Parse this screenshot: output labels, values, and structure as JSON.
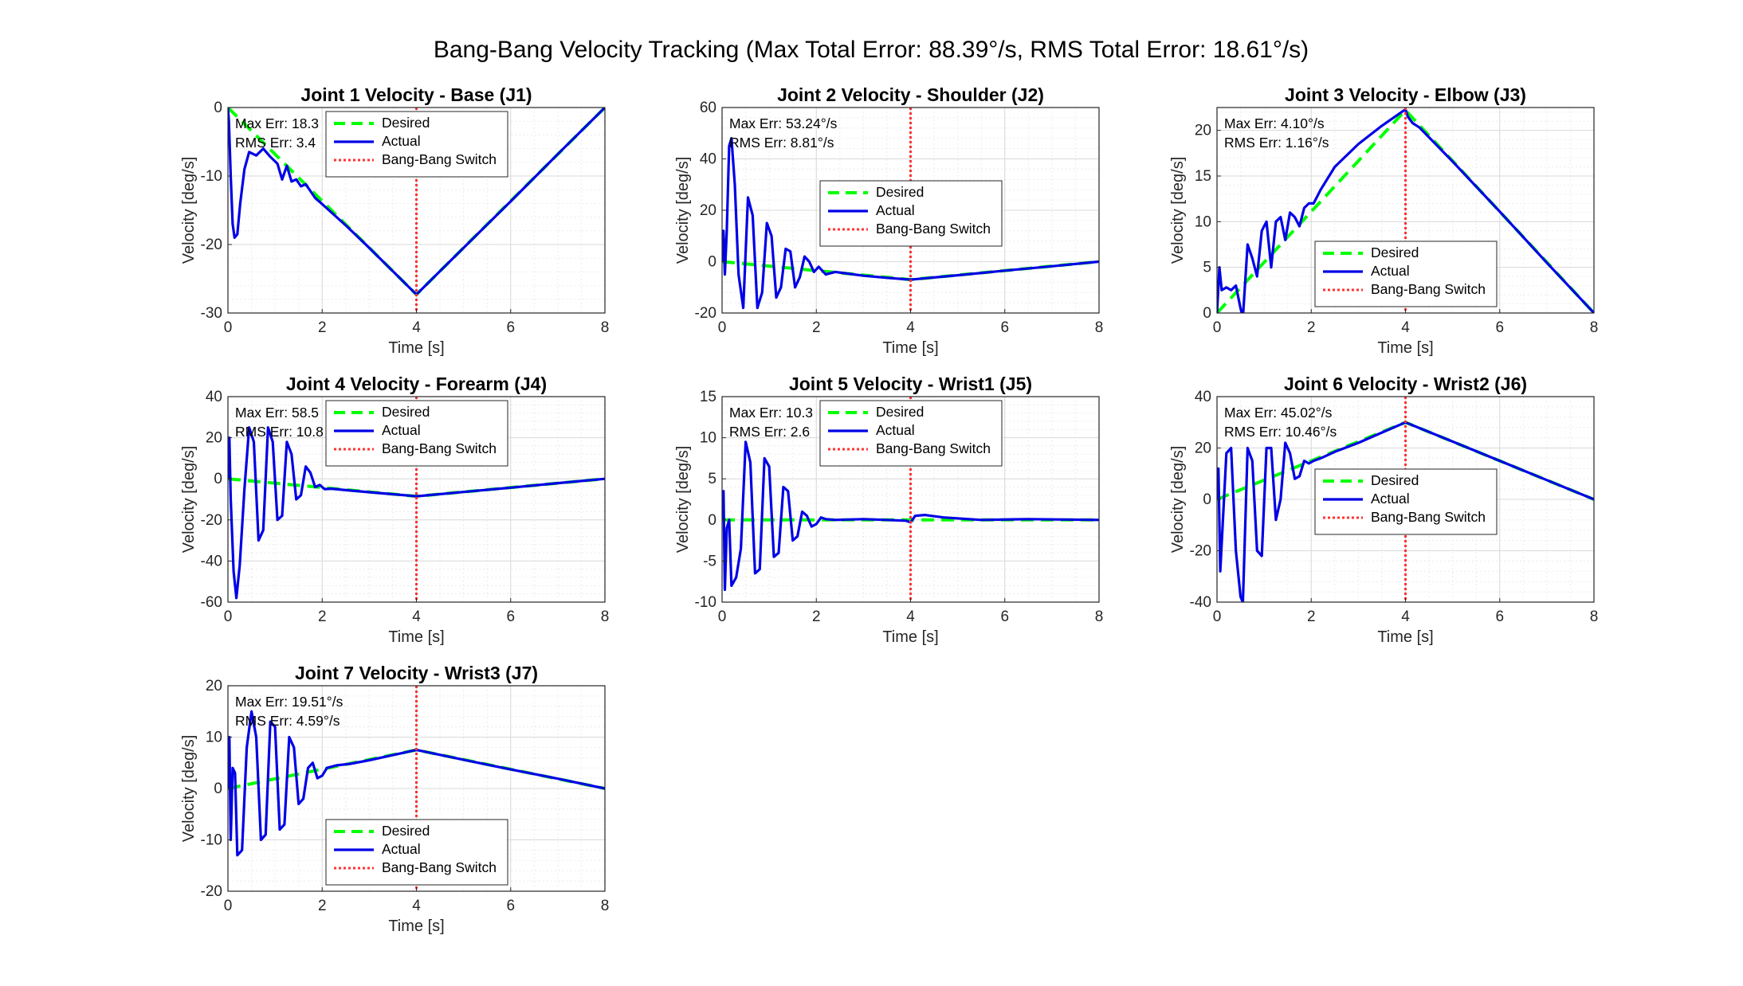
{
  "figure": {
    "suptitle": "Bang-Bang Velocity Tracking (Max Total Error: 88.39°/s, RMS Total Error: 18.61°/s)"
  },
  "colors": {
    "desired": "#00ff00",
    "actual": "#0000e6",
    "switch": "#ff3333"
  },
  "legend_labels": [
    "Desired",
    "Actual",
    "Bang-Bang Switch"
  ],
  "chart_data": [
    {
      "type": "line",
      "title": "Joint 1 Velocity - Base (J1)",
      "xlabel": "Time [s]",
      "ylabel": "Velocity [deg/s]",
      "xlim": [
        0,
        8
      ],
      "ylim": [
        -30,
        0
      ],
      "xticks": [
        0,
        2,
        4,
        6,
        8
      ],
      "yticks": [
        -30,
        -20,
        -10,
        0
      ],
      "grid": true,
      "switch_time": 4,
      "legend_location": "top-center",
      "annotations": [
        "Max Err: 18.3",
        "RMS Err: 3.4"
      ],
      "series": [
        {
          "name": "Desired",
          "style": "dashed",
          "x": [
            0,
            4,
            8
          ],
          "y": [
            0,
            -27.3,
            0
          ]
        },
        {
          "name": "Actual",
          "style": "solid",
          "x": [
            0,
            0.02,
            0.06,
            0.1,
            0.14,
            0.2,
            0.26,
            0.35,
            0.45,
            0.6,
            0.75,
            0.9,
            1.05,
            1.15,
            1.25,
            1.35,
            1.45,
            1.55,
            1.65,
            1.75,
            1.85,
            2.0,
            2.5,
            3.0,
            3.5,
            4.0,
            5.0,
            6.0,
            7.0,
            8.0
          ],
          "y": [
            0,
            -2,
            -10,
            -17,
            -19,
            -18.5,
            -14,
            -9,
            -6.5,
            -7,
            -6,
            -7.2,
            -8.2,
            -10.5,
            -8.5,
            -10.8,
            -10.5,
            -11.5,
            -11.2,
            -12.2,
            -13.2,
            -14.1,
            -17.2,
            -20.5,
            -23.9,
            -27.3,
            -20.5,
            -13.7,
            -6.8,
            0
          ]
        }
      ]
    },
    {
      "type": "line",
      "title": "Joint 2 Velocity - Shoulder (J2)",
      "xlabel": "Time [s]",
      "ylabel": "Velocity [deg/s]",
      "xlim": [
        0,
        8
      ],
      "ylim": [
        -20,
        60
      ],
      "xticks": [
        0,
        2,
        4,
        6,
        8
      ],
      "yticks": [
        -20,
        0,
        20,
        40,
        60
      ],
      "grid": true,
      "switch_time": 4,
      "legend_location": "center",
      "annotations": [
        "Max Err: 53.24°/s",
        "RMS Err: 8.81°/s"
      ],
      "series": [
        {
          "name": "Desired",
          "style": "dashed",
          "x": [
            0,
            4,
            8
          ],
          "y": [
            0,
            -7,
            0
          ]
        },
        {
          "name": "Actual",
          "style": "solid",
          "x": [
            0,
            0.03,
            0.06,
            0.1,
            0.15,
            0.2,
            0.27,
            0.35,
            0.45,
            0.55,
            0.65,
            0.75,
            0.85,
            0.95,
            1.05,
            1.15,
            1.25,
            1.35,
            1.45,
            1.55,
            1.65,
            1.75,
            1.85,
            1.95,
            2.05,
            2.2,
            2.4,
            2.6,
            3.0,
            3.5,
            4.0,
            5.0,
            6.0,
            7.0,
            8.0
          ],
          "y": [
            0,
            12,
            -5,
            12,
            45,
            48,
            30,
            -5,
            -18,
            25,
            18,
            -18,
            -12,
            15,
            10,
            -14,
            -10,
            5,
            4,
            -10,
            -6,
            2,
            0,
            -4,
            -2,
            -5,
            -4,
            -4.5,
            -5.5,
            -6.3,
            -7,
            -5.3,
            -3.5,
            -1.8,
            0
          ]
        }
      ]
    },
    {
      "type": "line",
      "title": "Joint 3 Velocity - Elbow (J3)",
      "xlabel": "Time [s]",
      "ylabel": "Velocity [deg/s]",
      "xlim": [
        0,
        8
      ],
      "ylim": [
        0,
        22.5
      ],
      "xticks": [
        0,
        2,
        4,
        6,
        8
      ],
      "yticks": [
        0,
        5,
        10,
        15,
        20
      ],
      "grid": true,
      "switch_time": 4,
      "legend_location": "bottom-center",
      "annotations": [
        "Max Err: 4.10°/s",
        "RMS Err: 1.16°/s"
      ],
      "series": [
        {
          "name": "Desired",
          "style": "dashed",
          "x": [
            0,
            4,
            8
          ],
          "y": [
            0,
            22.2,
            0
          ]
        },
        {
          "name": "Actual",
          "style": "solid",
          "x": [
            0,
            0.05,
            0.1,
            0.2,
            0.3,
            0.4,
            0.5,
            0.55,
            0.65,
            0.75,
            0.85,
            0.95,
            1.05,
            1.15,
            1.25,
            1.35,
            1.45,
            1.55,
            1.65,
            1.75,
            1.85,
            1.95,
            2.05,
            2.2,
            2.5,
            3.0,
            3.5,
            4.0,
            4.05,
            4.15,
            4.3,
            5.0,
            6.0,
            7.0,
            8.0
          ],
          "y": [
            0,
            5,
            2.5,
            2.8,
            2.5,
            3,
            0.5,
            -0.5,
            7.5,
            6,
            4,
            9,
            10,
            5,
            10,
            10.5,
            8,
            11,
            10.5,
            9.5,
            11.5,
            12,
            12,
            13.5,
            16,
            18.5,
            20.5,
            22.3,
            21.5,
            20.8,
            20.3,
            16.6,
            11.1,
            5.5,
            0
          ]
        }
      ]
    },
    {
      "type": "line",
      "title": "Joint 4 Velocity - Forearm (J4)",
      "xlabel": "Time [s]",
      "ylabel": "Velocity [deg/s]",
      "xlim": [
        0,
        8
      ],
      "ylim": [
        -60,
        40
      ],
      "xticks": [
        0,
        2,
        4,
        6,
        8
      ],
      "yticks": [
        -60,
        -40,
        -20,
        0,
        20,
        40
      ],
      "grid": true,
      "switch_time": 4,
      "legend_location": "top-center",
      "annotations": [
        "Max Err: 58.5",
        "RMS Err: 10.8"
      ],
      "series": [
        {
          "name": "Desired",
          "style": "dashed",
          "x": [
            0,
            4,
            8
          ],
          "y": [
            0,
            -8.5,
            0
          ]
        },
        {
          "name": "Actual",
          "style": "solid",
          "x": [
            0,
            0.03,
            0.06,
            0.12,
            0.18,
            0.25,
            0.35,
            0.45,
            0.55,
            0.65,
            0.75,
            0.85,
            0.95,
            1.05,
            1.15,
            1.25,
            1.35,
            1.45,
            1.55,
            1.65,
            1.75,
            1.85,
            1.95,
            2.05,
            2.2,
            2.5,
            3.0,
            3.5,
            4.0,
            5.0,
            6.0,
            7.0,
            8.0
          ],
          "y": [
            0,
            20,
            -10,
            -45,
            -58,
            -42,
            -5,
            25,
            18,
            -30,
            -25,
            25,
            18,
            -20,
            -18,
            18,
            12,
            -10,
            -8,
            6,
            3,
            -4,
            -3,
            -5,
            -4.8,
            -5.5,
            -6.5,
            -7.5,
            -8.5,
            -6.4,
            -4.3,
            -2.1,
            0
          ]
        }
      ]
    },
    {
      "type": "line",
      "title": "Joint 5 Velocity - Wrist1 (J5)",
      "xlabel": "Time [s]",
      "ylabel": "Velocity [deg/s]",
      "xlim": [
        0,
        8
      ],
      "ylim": [
        -10,
        15
      ],
      "xticks": [
        0,
        2,
        4,
        6,
        8
      ],
      "yticks": [
        -10,
        -5,
        0,
        5,
        10,
        15
      ],
      "grid": true,
      "switch_time": 4,
      "legend_location": "top-center",
      "annotations": [
        "Max Err: 10.3",
        "RMS Err: 2.6"
      ],
      "series": [
        {
          "name": "Desired",
          "style": "dashed",
          "x": [
            0,
            8
          ],
          "y": [
            0,
            0
          ]
        },
        {
          "name": "Actual",
          "style": "solid",
          "x": [
            0,
            0.03,
            0.06,
            0.1,
            0.15,
            0.2,
            0.3,
            0.4,
            0.5,
            0.6,
            0.7,
            0.8,
            0.9,
            1.0,
            1.1,
            1.2,
            1.3,
            1.4,
            1.5,
            1.6,
            1.7,
            1.8,
            1.9,
            2.0,
            2.1,
            2.2,
            2.4,
            3.0,
            3.5,
            3.9,
            4.0,
            4.1,
            4.3,
            4.7,
            5.5,
            6.5,
            8.0
          ],
          "y": [
            0,
            3.5,
            -8.5,
            -1,
            0,
            -8,
            -7,
            -3.5,
            9.5,
            7,
            -6.5,
            -6,
            7.5,
            6.5,
            -4.5,
            -4,
            4,
            3.5,
            -2.5,
            -2,
            1,
            0.5,
            -0.8,
            -0.5,
            0.3,
            0.1,
            0,
            0.1,
            0,
            -0.1,
            -0.3,
            0.5,
            0.6,
            0.3,
            0,
            0.1,
            0
          ]
        }
      ]
    },
    {
      "type": "line",
      "title": "Joint 6 Velocity - Wrist2 (J6)",
      "xlabel": "Time [s]",
      "ylabel": "Velocity [deg/s]",
      "xlim": [
        0,
        8
      ],
      "ylim": [
        -40,
        40
      ],
      "xticks": [
        0,
        2,
        4,
        6,
        8
      ],
      "yticks": [
        -40,
        -20,
        0,
        20,
        40
      ],
      "grid": true,
      "switch_time": 4,
      "legend_location": "center-right",
      "annotations": [
        "Max Err: 45.02°/s",
        "RMS Err: 10.46°/s"
      ],
      "series": [
        {
          "name": "Desired",
          "style": "dashed",
          "x": [
            0,
            4,
            8
          ],
          "y": [
            0,
            30,
            0
          ]
        },
        {
          "name": "Actual",
          "style": "solid",
          "x": [
            0,
            0.03,
            0.07,
            0.12,
            0.2,
            0.3,
            0.4,
            0.5,
            0.55,
            0.65,
            0.75,
            0.85,
            0.95,
            1.05,
            1.15,
            1.25,
            1.35,
            1.45,
            1.55,
            1.65,
            1.75,
            1.85,
            1.95,
            2.05,
            2.2,
            2.5,
            3.0,
            3.5,
            4.0,
            5.0,
            6.0,
            7.0,
            8.0
          ],
          "y": [
            0,
            12,
            -28,
            -10,
            18,
            20,
            -20,
            -38,
            -40,
            20,
            15,
            -20,
            -22,
            20,
            20,
            -8,
            0,
            22,
            18,
            8,
            9,
            15,
            14,
            15,
            16,
            18.5,
            22,
            26,
            30,
            22.5,
            15,
            7.5,
            0
          ]
        }
      ]
    },
    {
      "type": "line",
      "title": "Joint 7 Velocity - Wrist3 (J7)",
      "xlabel": "Time [s]",
      "ylabel": "Velocity [deg/s]",
      "xlim": [
        0,
        8
      ],
      "ylim": [
        -20,
        20
      ],
      "xticks": [
        0,
        2,
        4,
        6,
        8
      ],
      "yticks": [
        -20,
        -10,
        0,
        10,
        20
      ],
      "grid": true,
      "switch_time": 4,
      "legend_location": "bottom-center",
      "annotations": [
        "Max Err: 19.51°/s",
        "RMS Err: 4.59°/s"
      ],
      "series": [
        {
          "name": "Desired",
          "style": "dashed",
          "x": [
            0,
            4,
            8
          ],
          "y": [
            0,
            7.5,
            0
          ]
        },
        {
          "name": "Actual",
          "style": "solid",
          "x": [
            0,
            0.03,
            0.06,
            0.1,
            0.15,
            0.2,
            0.3,
            0.4,
            0.5,
            0.6,
            0.7,
            0.8,
            0.9,
            1.0,
            1.1,
            1.2,
            1.3,
            1.4,
            1.5,
            1.6,
            1.7,
            1.8,
            1.9,
            2.0,
            2.1,
            2.3,
            2.6,
            3.0,
            3.5,
            4.0,
            5.0,
            6.0,
            7.0,
            8.0
          ],
          "y": [
            0,
            10,
            -10,
            4,
            3,
            -13,
            -12,
            8,
            15,
            10,
            -10,
            -9,
            13,
            12,
            -8,
            -7,
            10,
            8,
            -3,
            -2,
            4,
            5,
            2,
            2.5,
            4,
            4.5,
            4.8,
            5.5,
            6.5,
            7.5,
            5.6,
            3.7,
            1.9,
            0
          ]
        }
      ]
    }
  ]
}
